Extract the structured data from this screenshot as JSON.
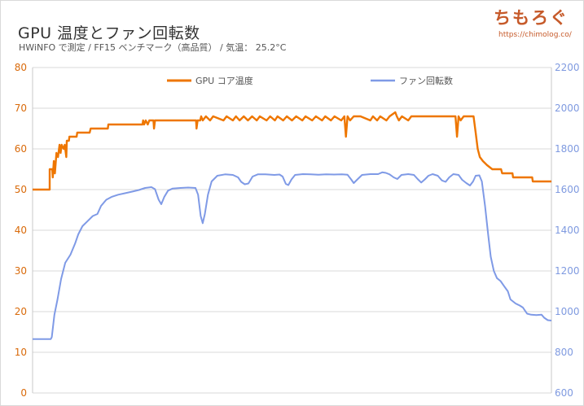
{
  "header": {
    "title": "GPU 温度とファン回転数",
    "subtitle": "HWiNFO で測定 / FF15 ベンチマーク（高品質） / 気温： 25.2°C"
  },
  "brand": {
    "logo_text": "ちもろぐ",
    "url": "https://chimolog.co/"
  },
  "colors": {
    "temp_line": "#ee7600",
    "fan_line": "#7f9ae6",
    "left_axis": "#d96a0a",
    "right_axis": "#7f9ae0",
    "grid": "#d9d9d9"
  },
  "chart_data": {
    "type": "line",
    "title": "GPU 温度とファン回転数",
    "legend_position": "top-center",
    "grid": true,
    "y_left": {
      "min": 0,
      "max": 80,
      "ticks": [
        0,
        10,
        20,
        30,
        40,
        50,
        60,
        70,
        80
      ]
    },
    "y_right": {
      "min": 600,
      "max": 2200,
      "ticks": [
        600,
        800,
        1000,
        1200,
        1400,
        1600,
        1800,
        2000,
        2200
      ]
    },
    "x_range": [
      0,
      100
    ],
    "series": [
      {
        "name": "GPU コア温度",
        "axis": "left",
        "points": [
          [
            0,
            50
          ],
          [
            3.3,
            50
          ],
          [
            3.3,
            55
          ],
          [
            3.8,
            55
          ],
          [
            3.9,
            53
          ],
          [
            4.1,
            57
          ],
          [
            4.3,
            54
          ],
          [
            4.6,
            59
          ],
          [
            4.9,
            58
          ],
          [
            5.2,
            61
          ],
          [
            5.4,
            59
          ],
          [
            5.6,
            61
          ],
          [
            6,
            60
          ],
          [
            6.2,
            61
          ],
          [
            6.5,
            58
          ],
          [
            6.6,
            62
          ],
          [
            7,
            62
          ],
          [
            7.1,
            63
          ],
          [
            8.5,
            63
          ],
          [
            8.6,
            64
          ],
          [
            11,
            64
          ],
          [
            11.2,
            65
          ],
          [
            14.5,
            65
          ],
          [
            14.6,
            66
          ],
          [
            21.2,
            66
          ],
          [
            21.3,
            67
          ],
          [
            21.5,
            66
          ],
          [
            21.8,
            67
          ],
          [
            22.2,
            66
          ],
          [
            22.5,
            67
          ],
          [
            23.3,
            67
          ],
          [
            23.4,
            65
          ],
          [
            23.6,
            67
          ],
          [
            31.5,
            67
          ],
          [
            31.6,
            65
          ],
          [
            31.8,
            67
          ],
          [
            32.3,
            67
          ],
          [
            32.5,
            68
          ],
          [
            32.8,
            67
          ],
          [
            33.4,
            68
          ],
          [
            34.2,
            67
          ],
          [
            34.8,
            68
          ],
          [
            36.8,
            67
          ],
          [
            37.4,
            68
          ],
          [
            38.6,
            67
          ],
          [
            39.2,
            68
          ],
          [
            39.9,
            67
          ],
          [
            40.7,
            68
          ],
          [
            41.5,
            67
          ],
          [
            42.3,
            68
          ],
          [
            43.2,
            67
          ],
          [
            43.8,
            68
          ],
          [
            45.1,
            67
          ],
          [
            45.8,
            68
          ],
          [
            46.7,
            67
          ],
          [
            47.2,
            68
          ],
          [
            48.3,
            67
          ],
          [
            49,
            68
          ],
          [
            50,
            67
          ],
          [
            50.8,
            68
          ],
          [
            52,
            67
          ],
          [
            52.6,
            68
          ],
          [
            53.9,
            67
          ],
          [
            54.6,
            68
          ],
          [
            55.8,
            67
          ],
          [
            56.4,
            68
          ],
          [
            57.5,
            67
          ],
          [
            58.2,
            68
          ],
          [
            59.5,
            67
          ],
          [
            60.1,
            68
          ],
          [
            60.4,
            63
          ],
          [
            60.7,
            68
          ],
          [
            61.2,
            67
          ],
          [
            61.9,
            68
          ],
          [
            62.5,
            68
          ],
          [
            63.2,
            68
          ],
          [
            65.1,
            67
          ],
          [
            65.6,
            68
          ],
          [
            66.4,
            67
          ],
          [
            67,
            68
          ],
          [
            68.2,
            67
          ],
          [
            68.8,
            68
          ],
          [
            69.9,
            69
          ],
          [
            70.2,
            68
          ],
          [
            70.6,
            67
          ],
          [
            71.2,
            68
          ],
          [
            72.4,
            67
          ],
          [
            73,
            68
          ],
          [
            74.1,
            68
          ],
          [
            75.2,
            68
          ],
          [
            77.8,
            68
          ],
          [
            80,
            68
          ],
          [
            81.5,
            68
          ],
          [
            81.8,
            63
          ],
          [
            82.1,
            68
          ],
          [
            82.5,
            67
          ],
          [
            83.1,
            68
          ],
          [
            84.1,
            68
          ],
          [
            85,
            68
          ],
          [
            85.4,
            64
          ],
          [
            85.8,
            60
          ],
          [
            86.2,
            58
          ],
          [
            86.8,
            57
          ],
          [
            87.6,
            56
          ],
          [
            88.6,
            55
          ],
          [
            90.3,
            55
          ],
          [
            90.5,
            54
          ],
          [
            92.5,
            54
          ],
          [
            92.6,
            53
          ],
          [
            96.3,
            53
          ],
          [
            96.4,
            52
          ],
          [
            100,
            52
          ]
        ]
      },
      {
        "name": "ファン回転数",
        "axis": "right",
        "points": [
          [
            0,
            865
          ],
          [
            3.5,
            865
          ],
          [
            3.7,
            875
          ],
          [
            4.2,
            985
          ],
          [
            4.8,
            1060
          ],
          [
            5.5,
            1160
          ],
          [
            6.3,
            1240
          ],
          [
            7.3,
            1280
          ],
          [
            8.2,
            1335
          ],
          [
            8.8,
            1380
          ],
          [
            9.6,
            1420
          ],
          [
            10.6,
            1445
          ],
          [
            11.6,
            1470
          ],
          [
            12.5,
            1480
          ],
          [
            13.2,
            1520
          ],
          [
            14.2,
            1550
          ],
          [
            15.3,
            1565
          ],
          [
            16.5,
            1575
          ],
          [
            17.8,
            1582
          ],
          [
            19.2,
            1590
          ],
          [
            20.5,
            1598
          ],
          [
            21.7,
            1608
          ],
          [
            22.9,
            1612
          ],
          [
            23.6,
            1602
          ],
          [
            24.3,
            1550
          ],
          [
            24.8,
            1528
          ],
          [
            25.4,
            1565
          ],
          [
            26.1,
            1595
          ],
          [
            27,
            1605
          ],
          [
            28.5,
            1608
          ],
          [
            30,
            1610
          ],
          [
            31.4,
            1608
          ],
          [
            31.9,
            1575
          ],
          [
            32.4,
            1470
          ],
          [
            32.8,
            1435
          ],
          [
            33.2,
            1480
          ],
          [
            33.8,
            1575
          ],
          [
            34.5,
            1640
          ],
          [
            35.6,
            1668
          ],
          [
            37.1,
            1675
          ],
          [
            38.6,
            1672
          ],
          [
            39.6,
            1660
          ],
          [
            40.2,
            1638
          ],
          [
            40.9,
            1626
          ],
          [
            41.6,
            1630
          ],
          [
            42.4,
            1664
          ],
          [
            43.4,
            1675
          ],
          [
            44.9,
            1675
          ],
          [
            46.6,
            1672
          ],
          [
            47.6,
            1674
          ],
          [
            48.2,
            1664
          ],
          [
            48.8,
            1628
          ],
          [
            49.3,
            1622
          ],
          [
            49.9,
            1650
          ],
          [
            50.6,
            1672
          ],
          [
            52.1,
            1676
          ],
          [
            53.6,
            1675
          ],
          [
            55.1,
            1673
          ],
          [
            56.6,
            1675
          ],
          [
            58.1,
            1674
          ],
          [
            59.6,
            1675
          ],
          [
            60.7,
            1673
          ],
          [
            61.4,
            1650
          ],
          [
            61.9,
            1632
          ],
          [
            62.6,
            1650
          ],
          [
            63.5,
            1672
          ],
          [
            65.1,
            1676
          ],
          [
            66.6,
            1676
          ],
          [
            67.4,
            1685
          ],
          [
            68.1,
            1682
          ],
          [
            68.8,
            1675
          ],
          [
            69.6,
            1660
          ],
          [
            70.3,
            1652
          ],
          [
            71.1,
            1672
          ],
          [
            72.4,
            1676
          ],
          [
            73.5,
            1672
          ],
          [
            74.2,
            1652
          ],
          [
            74.9,
            1635
          ],
          [
            75.6,
            1650
          ],
          [
            76.3,
            1668
          ],
          [
            77.1,
            1676
          ],
          [
            78.1,
            1668
          ],
          [
            78.9,
            1645
          ],
          [
            79.6,
            1638
          ],
          [
            80.3,
            1660
          ],
          [
            81.1,
            1676
          ],
          [
            82.1,
            1672
          ],
          [
            82.8,
            1648
          ],
          [
            83.6,
            1632
          ],
          [
            84.3,
            1620
          ],
          [
            84.9,
            1640
          ],
          [
            85.4,
            1668
          ],
          [
            86.1,
            1670
          ],
          [
            86.6,
            1640
          ],
          [
            87.2,
            1520
          ],
          [
            87.8,
            1380
          ],
          [
            88.3,
            1270
          ],
          [
            88.9,
            1200
          ],
          [
            89.5,
            1165
          ],
          [
            90.2,
            1150
          ],
          [
            90.9,
            1125
          ],
          [
            91.6,
            1100
          ],
          [
            92.1,
            1060
          ],
          [
            93.1,
            1040
          ],
          [
            93.9,
            1030
          ],
          [
            94.5,
            1020
          ],
          [
            95.3,
            990
          ],
          [
            96.1,
            985
          ],
          [
            97.1,
            983
          ],
          [
            98.1,
            985
          ],
          [
            98.6,
            970
          ],
          [
            99.3,
            958
          ],
          [
            100,
            956
          ]
        ]
      }
    ]
  }
}
